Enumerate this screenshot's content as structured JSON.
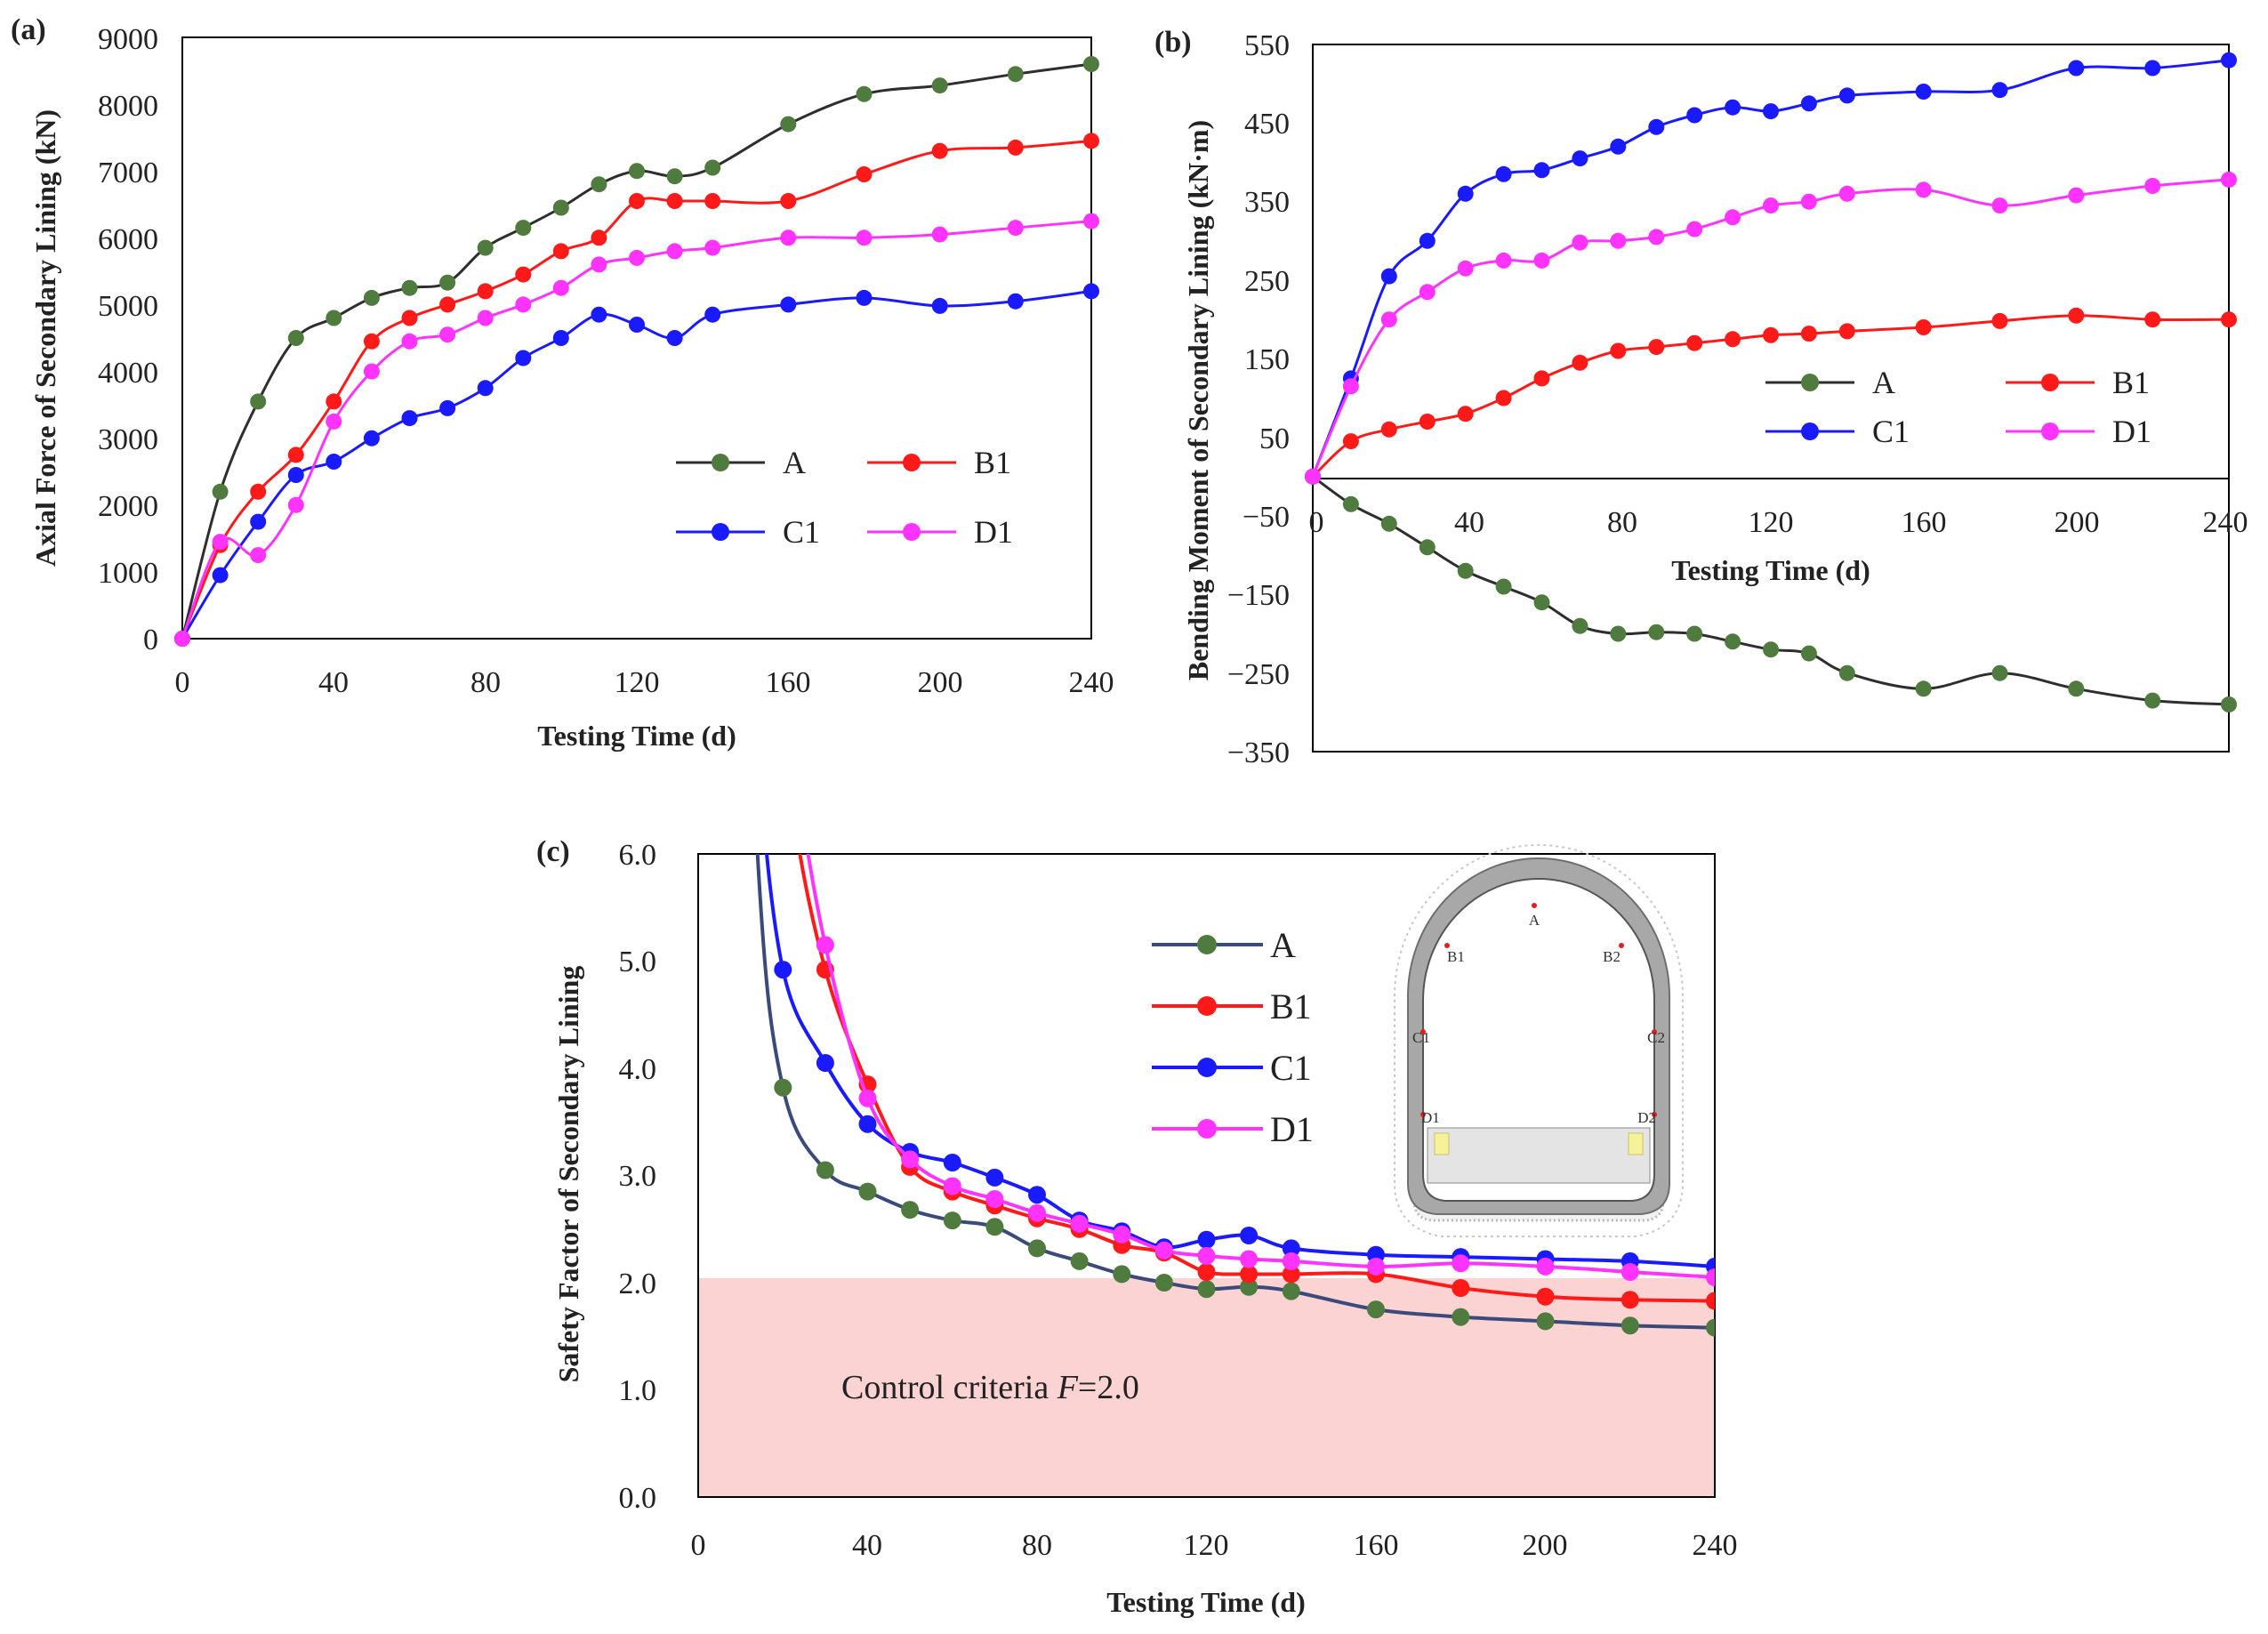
{
  "colors": {
    "A": "#4f7b3f",
    "A_line": "#2e2e2e",
    "A_line_c": "#3a4a7a",
    "B1": "#ff1a1a",
    "C1": "#1a1aff",
    "D1": "#ff33ff",
    "control_fill": "#fbd3d3",
    "axis": "#000000"
  },
  "chart_data": [
    {
      "panel": "(a)",
      "type": "line",
      "xlabel": "Testing Time (d)",
      "ylabel": "Axial Force of Secondary Lining (kN)",
      "xlim": [
        0,
        240
      ],
      "ylim": [
        0,
        9000
      ],
      "xticks": [
        "0",
        "40",
        "80",
        "120",
        "160",
        "200",
        "240"
      ],
      "yticks": [
        "0",
        "1000",
        "2000",
        "3000",
        "4000",
        "5000",
        "6000",
        "7000",
        "8000",
        "9000"
      ],
      "legend_position": "lower-right",
      "series": [
        {
          "name": "A",
          "x": [
            0,
            10,
            20,
            30,
            40,
            50,
            60,
            70,
            80,
            90,
            100,
            110,
            120,
            130,
            140,
            160,
            180,
            200,
            220,
            240
          ],
          "y": [
            0,
            2200,
            3550,
            4500,
            4800,
            5100,
            5250,
            5330,
            5850,
            6150,
            6450,
            6800,
            7000,
            6920,
            7050,
            7700,
            8150,
            8280,
            8450,
            8600
          ]
        },
        {
          "name": "B1",
          "x": [
            0,
            10,
            20,
            30,
            40,
            50,
            60,
            70,
            80,
            90,
            100,
            110,
            120,
            130,
            140,
            160,
            180,
            200,
            220,
            240
          ],
          "y": [
            0,
            1400,
            2200,
            2750,
            3550,
            4450,
            4800,
            5000,
            5200,
            5450,
            5800,
            6000,
            6550,
            6550,
            6550,
            6550,
            6950,
            7300,
            7350,
            7450
          ]
        },
        {
          "name": "C1",
          "x": [
            0,
            10,
            20,
            30,
            40,
            50,
            60,
            70,
            80,
            90,
            100,
            110,
            120,
            130,
            140,
            160,
            180,
            200,
            220,
            240
          ],
          "y": [
            0,
            950,
            1750,
            2450,
            2650,
            3000,
            3300,
            3450,
            3750,
            4200,
            4500,
            4850,
            4700,
            4500,
            4850,
            5000,
            5100,
            4980,
            5050,
            5200
          ]
        },
        {
          "name": "D1",
          "x": [
            0,
            10,
            20,
            30,
            40,
            50,
            60,
            70,
            80,
            90,
            100,
            110,
            120,
            130,
            140,
            160,
            180,
            200,
            220,
            240
          ],
          "y": [
            0,
            1450,
            1250,
            2000,
            3250,
            4000,
            4450,
            4550,
            4800,
            5000,
            5250,
            5600,
            5700,
            5800,
            5850,
            6000,
            6000,
            6050,
            6150,
            6250
          ]
        }
      ]
    },
    {
      "panel": "(b)",
      "type": "line",
      "xlabel": "Testing Time (d)",
      "ylabel": "Bending Moment of Secondary Lining (kN·m)",
      "xlim": [
        0,
        240
      ],
      "ylim": [
        -350,
        550
      ],
      "xticks": [
        "0",
        "40",
        "80",
        "120",
        "160",
        "200",
        "240"
      ],
      "yticks": [
        "550",
        "450",
        "350",
        "250",
        "150",
        "50",
        "−50",
        "−150",
        "−250",
        "−350"
      ],
      "legend_position": "center-right",
      "series": [
        {
          "name": "A",
          "x": [
            0,
            10,
            20,
            30,
            40,
            50,
            60,
            70,
            80,
            90,
            100,
            110,
            120,
            130,
            140,
            160,
            180,
            200,
            220,
            240
          ],
          "y": [
            0,
            -35,
            -60,
            -90,
            -120,
            -140,
            -160,
            -190,
            -200,
            -198,
            -200,
            -210,
            -220,
            -225,
            -250,
            -270,
            -250,
            -270,
            -285,
            -290
          ]
        },
        {
          "name": "B1",
          "x": [
            0,
            10,
            20,
            30,
            40,
            50,
            60,
            70,
            80,
            90,
            100,
            110,
            120,
            130,
            140,
            160,
            180,
            200,
            220,
            240
          ],
          "y": [
            0,
            45,
            60,
            70,
            80,
            100,
            125,
            145,
            160,
            165,
            170,
            175,
            180,
            182,
            185,
            190,
            198,
            205,
            200,
            200
          ]
        },
        {
          "name": "C1",
          "x": [
            0,
            10,
            20,
            30,
            40,
            50,
            60,
            70,
            80,
            90,
            100,
            110,
            120,
            130,
            140,
            160,
            180,
            200,
            220,
            240
          ],
          "y": [
            0,
            125,
            255,
            300,
            360,
            385,
            390,
            405,
            420,
            445,
            460,
            470,
            465,
            475,
            485,
            490,
            492,
            520,
            520,
            530
          ]
        },
        {
          "name": "D1",
          "x": [
            0,
            10,
            20,
            30,
            40,
            50,
            60,
            70,
            80,
            90,
            100,
            110,
            120,
            130,
            140,
            160,
            180,
            200,
            220,
            240
          ],
          "y": [
            0,
            115,
            200,
            235,
            265,
            275,
            275,
            298,
            300,
            305,
            315,
            330,
            345,
            350,
            360,
            365,
            345,
            358,
            370,
            378
          ]
        }
      ]
    },
    {
      "panel": "(c)",
      "type": "line",
      "xlabel": "Testing Time (d)",
      "ylabel": "Safety Factor of Secondary Lining",
      "xlim": [
        0,
        240
      ],
      "ylim": [
        0,
        6
      ],
      "xticks": [
        "0",
        "40",
        "80",
        "120",
        "160",
        "200",
        "240"
      ],
      "yticks": [
        "0.0",
        "1.0",
        "2.0",
        "3.0",
        "4.0",
        "5.0",
        "6.0"
      ],
      "legend_position": "top-center",
      "control_criteria": 2.0,
      "annotation_prefix": "Control criteria ",
      "annotation_var": "F",
      "annotation_suffix": "=2.0",
      "inset_labels": [
        "A",
        "B1",
        "B2",
        "C1",
        "C2",
        "D1",
        "D2"
      ],
      "series": [
        {
          "name": "A",
          "x": [
            20,
            30,
            40,
            50,
            60,
            70,
            80,
            90,
            100,
            110,
            120,
            130,
            140,
            160,
            180,
            200,
            220,
            240
          ],
          "y": [
            3.82,
            3.05,
            2.85,
            2.68,
            2.58,
            2.52,
            2.32,
            2.2,
            2.08,
            2.0,
            1.94,
            1.96,
            1.92,
            1.75,
            1.68,
            1.64,
            1.6,
            1.58
          ]
        },
        {
          "name": "B1",
          "x": [
            30,
            40,
            50,
            60,
            70,
            80,
            90,
            100,
            110,
            120,
            130,
            140,
            160,
            180,
            200,
            220,
            240
          ],
          "y": [
            4.92,
            3.85,
            3.08,
            2.85,
            2.72,
            2.6,
            2.5,
            2.35,
            2.28,
            2.1,
            2.08,
            2.08,
            2.08,
            1.95,
            1.87,
            1.84,
            1.83
          ]
        },
        {
          "name": "C1",
          "x": [
            20,
            30,
            40,
            50,
            60,
            70,
            80,
            90,
            100,
            110,
            120,
            130,
            140,
            160,
            180,
            200,
            220,
            240
          ],
          "y": [
            4.92,
            4.05,
            3.48,
            3.22,
            3.12,
            2.98,
            2.82,
            2.58,
            2.48,
            2.33,
            2.4,
            2.44,
            2.32,
            2.26,
            2.24,
            2.22,
            2.2,
            2.15
          ]
        },
        {
          "name": "D1",
          "x": [
            30,
            40,
            50,
            60,
            70,
            80,
            90,
            100,
            110,
            120,
            130,
            140,
            160,
            180,
            200,
            220,
            240
          ],
          "y": [
            5.15,
            3.72,
            3.15,
            2.9,
            2.78,
            2.65,
            2.55,
            2.45,
            2.3,
            2.25,
            2.22,
            2.2,
            2.15,
            2.18,
            2.15,
            2.1,
            2.05
          ]
        }
      ]
    }
  ]
}
